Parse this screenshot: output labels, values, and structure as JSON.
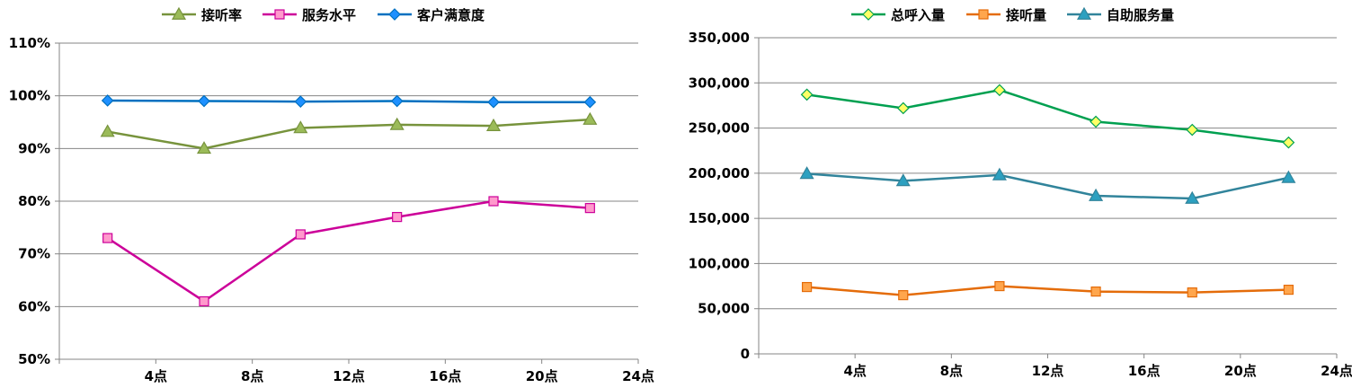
{
  "chart_data": [
    {
      "type": "line",
      "x_tick_labels": [
        "4点",
        "8点",
        "12点",
        "16点",
        "20点",
        "24点"
      ],
      "x": [
        2,
        6,
        10,
        14,
        18,
        22
      ],
      "xlim": [
        0,
        24
      ],
      "y_tick_labels": [
        "50%",
        "60%",
        "70%",
        "80%",
        "90%",
        "100%",
        "110%"
      ],
      "ylim": [
        50,
        110
      ],
      "y_unit": "%",
      "grid": true,
      "legend_position": "top",
      "series": [
        {
          "name": "接听率",
          "color": "#77933C",
          "fill": "#9BBB59",
          "marker": "triangle",
          "values": [
            93.2,
            90.0,
            93.9,
            94.5,
            94.3,
            95.5
          ]
        },
        {
          "name": "服务水平",
          "color": "#CC0099",
          "fill": "#FF99CC",
          "marker": "square",
          "values": [
            73.0,
            61.0,
            73.7,
            77.0,
            80.0,
            78.7
          ]
        },
        {
          "name": "客户满意度",
          "color": "#0070C0",
          "fill": "#1E90FF",
          "marker": "diamond",
          "values": [
            99.1,
            99.0,
            98.9,
            99.0,
            98.8,
            98.8
          ]
        }
      ]
    },
    {
      "type": "line",
      "x_tick_labels": [
        "4点",
        "8点",
        "12点",
        "16点",
        "20点",
        "24点"
      ],
      "x": [
        2,
        6,
        10,
        14,
        18,
        22
      ],
      "xlim": [
        0,
        24
      ],
      "y_tick_labels": [
        "0",
        "50,000",
        "100,000",
        "150,000",
        "200,000",
        "250,000",
        "300,000",
        "350,000"
      ],
      "ylim": [
        0,
        350000
      ],
      "grid": true,
      "legend_position": "top",
      "series": [
        {
          "name": "总呼入量",
          "color": "#00A050",
          "fill": "#FFFF66",
          "marker": "diamond",
          "values": [
            287000,
            272000,
            292000,
            257000,
            248000,
            234000
          ]
        },
        {
          "name": "接听量",
          "color": "#E46C0A",
          "fill": "#FFA64D",
          "marker": "square",
          "values": [
            74000,
            65000,
            75000,
            69000,
            68000,
            71000
          ]
        },
        {
          "name": "自助服务量",
          "color": "#31849B",
          "fill": "#2CA0C0",
          "marker": "triangle",
          "values": [
            199500,
            191500,
            198000,
            175000,
            172000,
            195000
          ]
        }
      ]
    }
  ]
}
